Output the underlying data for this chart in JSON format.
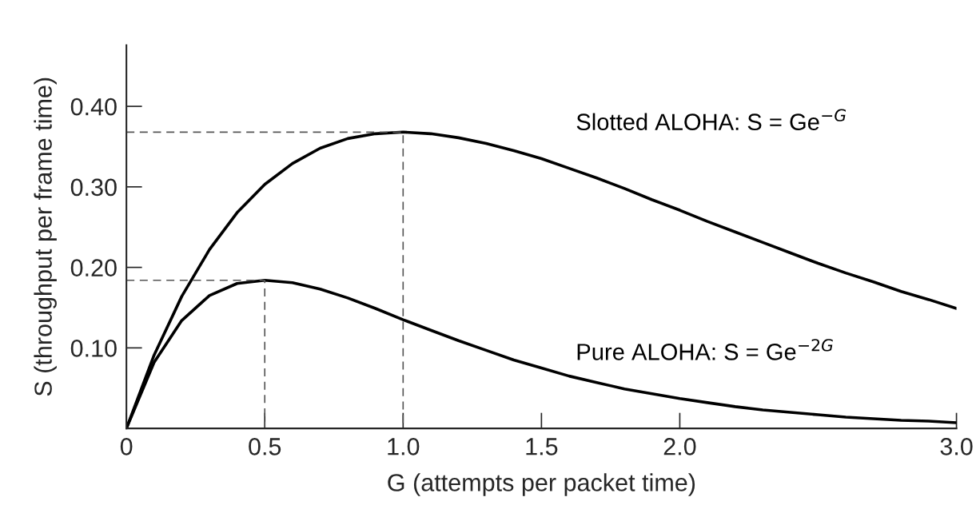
{
  "chart_data": {
    "type": "line",
    "xlabel": "G (attempts per packet time)",
    "ylabel": "S (throughput per frame time)",
    "xlim": [
      0,
      3.0
    ],
    "ylim": [
      0,
      0.476
    ],
    "xticks": [
      0,
      0.5,
      {
        "value": 1.0,
        "label": "1.0"
      },
      1.5,
      {
        "value": 2.0,
        "label": "2.0"
      },
      {
        "value": 3.0,
        "label": "3.0"
      }
    ],
    "yticks": [
      {
        "value": 0.1,
        "label": "0.10"
      },
      {
        "value": 0.2,
        "label": "0.20"
      },
      {
        "value": 0.3,
        "label": "0.30"
      },
      {
        "value": 0.4,
        "label": "0.40"
      }
    ],
    "grid": false,
    "legend": false,
    "marker": "none",
    "line_style": "solid",
    "x": [
      0,
      0.1,
      0.2,
      0.3,
      0.4,
      0.5,
      0.6,
      0.7,
      0.8,
      0.9,
      1.0,
      1.1,
      1.2,
      1.3,
      1.4,
      1.5,
      1.6,
      1.7,
      1.8,
      1.9,
      2.0,
      2.1,
      2.2,
      2.3,
      2.4,
      2.5,
      2.6,
      2.7,
      2.8,
      2.9,
      3.0
    ],
    "series": [
      {
        "name": "Slotted ALOHA: S = Ge$^{−G}$",
        "color": "#000000",
        "values": [
          0,
          0.091,
          0.164,
          0.222,
          0.268,
          0.303,
          0.329,
          0.348,
          0.36,
          0.366,
          0.368,
          0.366,
          0.361,
          0.354,
          0.345,
          0.335,
          0.323,
          0.311,
          0.298,
          0.284,
          0.271,
          0.257,
          0.244,
          0.231,
          0.218,
          0.205,
          0.193,
          0.182,
          0.17,
          0.16,
          0.149
        ]
      },
      {
        "name": "Pure ALOHA: S = Ge$^{−2G}$",
        "color": "#000000",
        "values": [
          0,
          0.082,
          0.134,
          0.165,
          0.18,
          0.184,
          0.181,
          0.173,
          0.162,
          0.149,
          0.135,
          0.122,
          0.109,
          0.097,
          0.085,
          0.075,
          0.065,
          0.057,
          0.049,
          0.043,
          0.037,
          0.032,
          0.027,
          0.023,
          0.02,
          0.017,
          0.014,
          0.012,
          0.01,
          0.009,
          0.007
        ]
      },
      {
        "type": "line",
        "line_style": "dashed",
        "color": "#555555",
        "x": [
          0,
          1.0,
          1.0
        ],
        "values": [
          0.368,
          0.368,
          0
        ]
      },
      {
        "type": "line",
        "line_style": "dashed",
        "color": "#555555",
        "x": [
          0,
          0.5,
          0.5
        ],
        "values": [
          0.184,
          0.184,
          0
        ]
      }
    ]
  }
}
